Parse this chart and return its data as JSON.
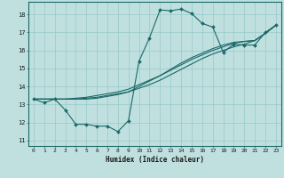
{
  "xlabel": "Humidex (Indice chaleur)",
  "background_color": "#c0e0e0",
  "grid_color": "#98c8c8",
  "line_color": "#1a6868",
  "xlim": [
    -0.5,
    23.5
  ],
  "ylim": [
    10.7,
    18.7
  ],
  "yticks": [
    11,
    12,
    13,
    14,
    15,
    16,
    17,
    18
  ],
  "xticks": [
    0,
    1,
    2,
    3,
    4,
    5,
    6,
    7,
    8,
    9,
    10,
    11,
    12,
    13,
    14,
    15,
    16,
    17,
    18,
    19,
    20,
    21,
    22,
    23
  ],
  "line1_x": [
    0,
    1,
    2,
    3,
    4,
    5,
    6,
    7,
    8,
    9,
    10,
    11,
    12,
    13,
    14,
    15,
    16,
    17,
    18,
    19,
    20,
    21,
    22,
    23
  ],
  "line1_y": [
    13.3,
    13.1,
    13.3,
    12.7,
    11.9,
    11.9,
    11.8,
    11.8,
    11.5,
    12.1,
    15.4,
    16.7,
    18.25,
    18.2,
    18.3,
    18.05,
    17.5,
    17.3,
    15.9,
    16.35,
    16.3,
    16.3,
    17.0,
    17.4
  ],
  "line2_x": [
    0,
    1,
    2,
    3,
    4,
    5,
    6,
    7,
    8,
    9,
    10,
    11,
    12,
    13,
    14,
    15,
    16,
    17,
    18,
    19,
    20,
    21,
    22,
    23
  ],
  "line2_y": [
    13.3,
    13.3,
    13.3,
    13.3,
    13.35,
    13.4,
    13.5,
    13.6,
    13.7,
    13.85,
    14.1,
    14.35,
    14.6,
    14.9,
    15.2,
    15.5,
    15.75,
    16.0,
    16.2,
    16.4,
    16.5,
    16.55,
    16.95,
    17.4
  ],
  "line3_x": [
    0,
    1,
    2,
    3,
    4,
    5,
    6,
    7,
    8,
    9,
    10,
    11,
    12,
    13,
    14,
    15,
    16,
    17,
    18,
    19,
    20,
    21,
    22,
    23
  ],
  "line3_y": [
    13.3,
    13.3,
    13.3,
    13.3,
    13.3,
    13.35,
    13.4,
    13.5,
    13.6,
    13.7,
    13.9,
    14.1,
    14.35,
    14.65,
    14.95,
    15.25,
    15.55,
    15.8,
    16.0,
    16.2,
    16.35,
    16.55,
    16.95,
    17.4
  ],
  "line4_x": [
    0,
    1,
    2,
    3,
    4,
    5,
    6,
    7,
    8,
    9,
    10,
    11,
    12,
    13,
    14,
    15,
    16,
    17,
    18,
    19,
    20,
    21,
    22,
    23
  ],
  "line4_y": [
    13.3,
    13.3,
    13.3,
    13.3,
    13.3,
    13.3,
    13.35,
    13.45,
    13.55,
    13.7,
    14.0,
    14.3,
    14.6,
    14.95,
    15.3,
    15.6,
    15.85,
    16.1,
    16.3,
    16.45,
    16.5,
    16.55,
    16.95,
    17.4
  ]
}
